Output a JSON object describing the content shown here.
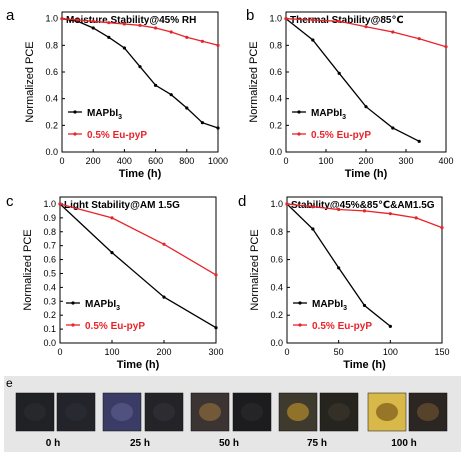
{
  "chart_data": [
    {
      "type": "line",
      "panel_label": "a",
      "title": "Moisture Stability@45% RH",
      "xlabel": "Time (h)",
      "ylabel": "Normalized PCE",
      "xlim": [
        0,
        1000
      ],
      "ylim": [
        0,
        1.05
      ],
      "xticks": [
        "0",
        "200",
        "400",
        "600",
        "800",
        "1000"
      ],
      "yticks": [
        "0.0",
        "0.2",
        "0.4",
        "0.6",
        "0.8",
        "1.0"
      ],
      "legend_position": "lower-left",
      "series": [
        {
          "name": "MAPbI3",
          "name_base": "MAPbI",
          "name_sub": "3",
          "color": "#000000",
          "x": [
            0,
            100,
            200,
            300,
            400,
            500,
            600,
            700,
            800,
            900,
            1000
          ],
          "y": [
            1.0,
            0.98,
            0.93,
            0.86,
            0.78,
            0.64,
            0.5,
            0.43,
            0.33,
            0.22,
            0.18
          ]
        },
        {
          "name": "0.5% Eu-pyP",
          "color": "#e8242b",
          "x": [
            0,
            100,
            200,
            300,
            400,
            500,
            600,
            700,
            800,
            900,
            1000
          ],
          "y": [
            1.0,
            0.99,
            0.98,
            0.97,
            0.96,
            0.95,
            0.93,
            0.9,
            0.86,
            0.83,
            0.8
          ]
        }
      ]
    },
    {
      "type": "line",
      "panel_label": "b",
      "title": "Thermal Stability@85℃",
      "xlabel": "Time (h)",
      "ylabel": "Normalized PCE",
      "xlim": [
        0,
        400
      ],
      "ylim": [
        0,
        1.05
      ],
      "xticks": [
        "0",
        "100",
        "200",
        "300",
        "400"
      ],
      "yticks": [
        "0.0",
        "0.2",
        "0.4",
        "0.6",
        "0.8",
        "1.0"
      ],
      "legend_position": "lower-left",
      "series": [
        {
          "name": "MAPbI3",
          "name_base": "MAPbI",
          "name_sub": "3",
          "color": "#000000",
          "x": [
            0,
            67,
            133,
            200,
            267,
            333
          ],
          "y": [
            1.0,
            0.84,
            0.59,
            0.34,
            0.18,
            0.08
          ]
        },
        {
          "name": "0.5% Eu-pyP",
          "color": "#e8242b",
          "x": [
            0,
            67,
            133,
            200,
            267,
            333,
            400
          ],
          "y": [
            1.0,
            0.99,
            0.98,
            0.94,
            0.9,
            0.85,
            0.79
          ]
        }
      ]
    },
    {
      "type": "line",
      "panel_label": "c",
      "title": "Light Stability@AM 1.5G",
      "xlabel": "Time (h)",
      "ylabel": "Normalized PCE",
      "xlim": [
        0,
        300
      ],
      "ylim": [
        0,
        1.05
      ],
      "xticks": [
        "0",
        "100",
        "200",
        "300"
      ],
      "yticks": [
        "0.0",
        "0.1",
        "0.2",
        "0.3",
        "0.4",
        "0.5",
        "0.6",
        "0.7",
        "0.8",
        "0.9",
        "1.0"
      ],
      "legend_position": "lower-left",
      "series": [
        {
          "name": "MAPbI3",
          "name_base": "MAPbI",
          "name_sub": "3",
          "color": "#000000",
          "x": [
            0,
            100,
            200,
            300
          ],
          "y": [
            1.0,
            0.65,
            0.33,
            0.11
          ]
        },
        {
          "name": "0.5% Eu-pyP",
          "color": "#e8242b",
          "x": [
            0,
            100,
            200,
            300
          ],
          "y": [
            1.0,
            0.9,
            0.71,
            0.49
          ]
        }
      ]
    },
    {
      "type": "line",
      "panel_label": "d",
      "title": "Stability@45%&85℃&AM1.5G",
      "xlabel": "Time (h)",
      "ylabel": "Normalized PCE",
      "xlim": [
        0,
        150
      ],
      "ylim": [
        0,
        1.05
      ],
      "xticks": [
        "0",
        "50",
        "100",
        "150"
      ],
      "yticks": [
        "0.0",
        "0.2",
        "0.4",
        "0.6",
        "0.8",
        "1.0"
      ],
      "legend_position": "lower-left",
      "series": [
        {
          "name": "MAPbI3",
          "name_base": "MAPbI",
          "name_sub": "3",
          "color": "#000000",
          "x": [
            0,
            25,
            50,
            75,
            100
          ],
          "y": [
            1.0,
            0.82,
            0.54,
            0.27,
            0.12
          ]
        },
        {
          "name": "0.5% Eu-pyP",
          "color": "#e8242b",
          "x": [
            0,
            25,
            50,
            75,
            100,
            125,
            150
          ],
          "y": [
            1.0,
            0.98,
            0.96,
            0.95,
            0.93,
            0.9,
            0.83
          ]
        }
      ]
    }
  ],
  "photo_panel": {
    "panel_label": "e",
    "time_labels": [
      "0 h",
      "25 h",
      "50 h",
      "75 h",
      "100 h"
    ],
    "samples": [
      {
        "base": "#1f2124",
        "mark": "#2a2c30"
      },
      {
        "base": "#23232a",
        "mark": "#2b2d34"
      },
      {
        "base": "#3a3c66",
        "mark": "#5a5a8a"
      },
      {
        "base": "#242428",
        "mark": "#303036"
      },
      {
        "base": "#3b3433",
        "mark": "#8a6a3a"
      },
      {
        "base": "#1c1c1e",
        "mark": "#2a2a2c"
      },
      {
        "base": "#3e3a2e",
        "mark": "#b58a2a"
      },
      {
        "base": "#26241f",
        "mark": "#3a352b"
      },
      {
        "base": "#d9b84a",
        "mark": "#7a5a1a"
      },
      {
        "base": "#2c2622",
        "mark": "#6a5030"
      }
    ]
  }
}
